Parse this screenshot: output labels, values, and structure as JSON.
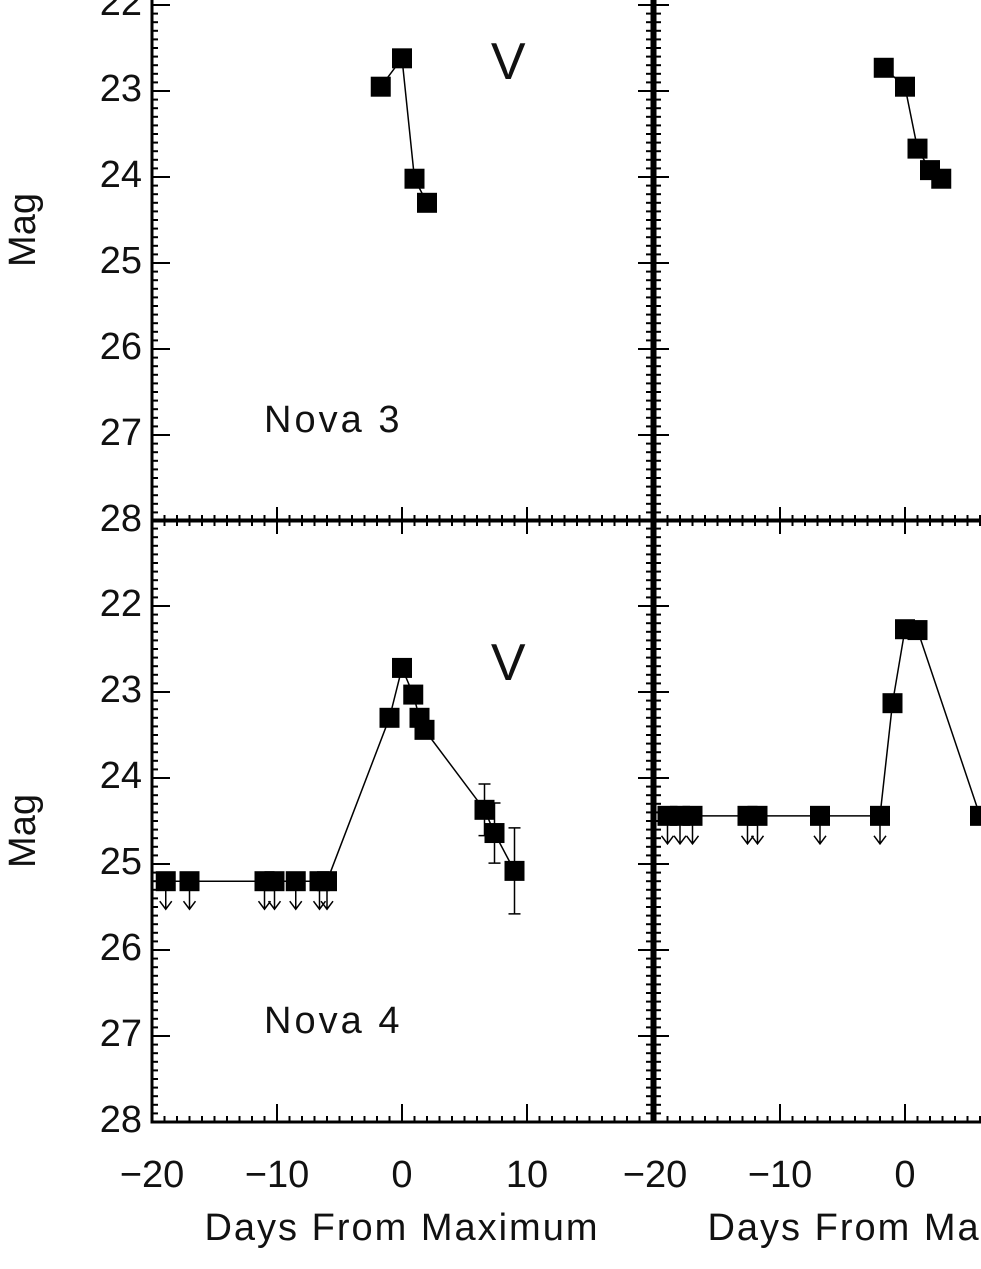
{
  "chart_data": [
    {
      "type": "line",
      "band": "V",
      "panel_label": "Nova 3",
      "ylabel": "Mag",
      "x": [
        -1.7,
        0,
        1.0,
        2.0
      ],
      "values": [
        22.95,
        22.62,
        24.02,
        24.3
      ],
      "xlim": [
        -20,
        20
      ],
      "ylim": [
        28,
        21
      ],
      "yticks": [
        22,
        23,
        24,
        25,
        26,
        27,
        28
      ],
      "color": "#000000"
    },
    {
      "type": "line",
      "x": [
        -1.7,
        0,
        1.0,
        2.0,
        2.9
      ],
      "values": [
        22.73,
        22.95,
        23.67,
        23.92,
        24.02
      ],
      "xlim": [
        -20,
        20
      ],
      "ylim": [
        28,
        21
      ],
      "color": "#000000"
    },
    {
      "type": "line",
      "band": "V",
      "panel_label": "Nova 4",
      "ylabel": "Mag",
      "xlabel": "Days From Maximum",
      "x": [
        -18.9,
        -17,
        -11,
        -10.2,
        -8.5,
        -6.6,
        -6,
        -1,
        0,
        0.9,
        1.4,
        1.8,
        6.6,
        7.4,
        9.0
      ],
      "values": [
        25.2,
        25.2,
        25.2,
        25.2,
        25.2,
        25.2,
        25.2,
        23.3,
        22.72,
        23.03,
        23.3,
        23.44,
        24.37,
        24.64,
        25.08
      ],
      "errors": [
        null,
        null,
        null,
        null,
        null,
        null,
        null,
        null,
        null,
        null,
        null,
        null,
        0.3,
        0.35,
        0.5
      ],
      "upper_limit": [
        true,
        true,
        true,
        true,
        true,
        true,
        true,
        false,
        false,
        false,
        false,
        false,
        false,
        false,
        false
      ],
      "xlim": [
        -20,
        20
      ],
      "ylim": [
        28,
        21
      ],
      "yticks": [
        22,
        23,
        24,
        25,
        26,
        27,
        28
      ],
      "xticks": [
        {
          "value": -20,
          "label": "−20"
        },
        {
          "value": -10,
          "label": "−10"
        },
        0,
        10
      ],
      "color": "#000000"
    },
    {
      "type": "line",
      "xlabel": "Days From Maximum",
      "x": [
        -19,
        -18,
        -17,
        -12.6,
        -11.8,
        -6.8,
        -2,
        -1,
        0,
        1,
        6
      ],
      "values": [
        24.44,
        24.44,
        24.44,
        24.44,
        24.44,
        24.44,
        24.44,
        23.13,
        22.27,
        22.28,
        24.44
      ],
      "upper_limit": [
        true,
        true,
        true,
        true,
        true,
        true,
        true,
        false,
        false,
        false,
        false
      ],
      "xlim": [
        -20,
        20
      ],
      "ylim": [
        28,
        21
      ],
      "xticks": [
        {
          "value": -20,
          "label": "−20"
        },
        {
          "value": -10,
          "label": "−10"
        },
        0
      ],
      "color": "#000000"
    }
  ]
}
